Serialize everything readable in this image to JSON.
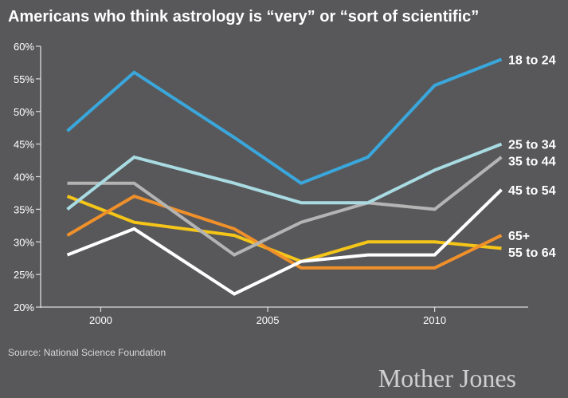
{
  "chart_data": {
    "type": "line",
    "title": "Americans who think astrology is “very” or “sort of scientific”",
    "xlabel": "",
    "ylabel": "",
    "x": [
      1999,
      2001,
      2004,
      2006,
      2008,
      2010,
      2012
    ],
    "xticks": [
      2000,
      2005,
      2010
    ],
    "xtick_labels": [
      "2000",
      "2005",
      "2010"
    ],
    "xlim": [
      1998.2,
      2012.8
    ],
    "ylim": [
      20,
      60
    ],
    "yticks": [
      20,
      25,
      30,
      35,
      40,
      45,
      50,
      55,
      60
    ],
    "ytick_labels": [
      "20%",
      "25%",
      "30%",
      "35%",
      "40%",
      "45%",
      "50%",
      "55%",
      "60%"
    ],
    "grid": false,
    "legend": "right, inline labels at line ends",
    "series": [
      {
        "name": "55 to 64",
        "color": "#f5c518",
        "values": [
          37,
          33,
          31,
          27,
          30,
          30,
          29
        ]
      },
      {
        "name": "65+",
        "color": "#f0902a",
        "values": [
          31,
          37,
          32,
          26,
          26,
          26,
          31
        ]
      },
      {
        "name": "35 to 44",
        "color": "#b4b4b4",
        "values": [
          39,
          39,
          28,
          33,
          36,
          35,
          43
        ]
      },
      {
        "name": "25 to 34",
        "color": "#a9dbe3",
        "values": [
          35,
          43,
          39,
          36,
          36,
          41,
          45
        ]
      },
      {
        "name": "45 to 54",
        "color": "#ffffff",
        "values": [
          28,
          32,
          22,
          27,
          28,
          28,
          38
        ]
      },
      {
        "name": "18 to 24",
        "color": "#3aa7dc",
        "values": [
          47,
          56,
          46,
          39,
          43,
          54,
          58
        ]
      }
    ]
  },
  "labels": {
    "source": "Source: National Science Foundation",
    "brand": "Mother Jones"
  },
  "colors": {
    "background": "#58585a",
    "axis": "#dcdcdc",
    "text": "#ffffff",
    "muted_text": "#d8d8d8",
    "brand": "#cfcfcf"
  }
}
